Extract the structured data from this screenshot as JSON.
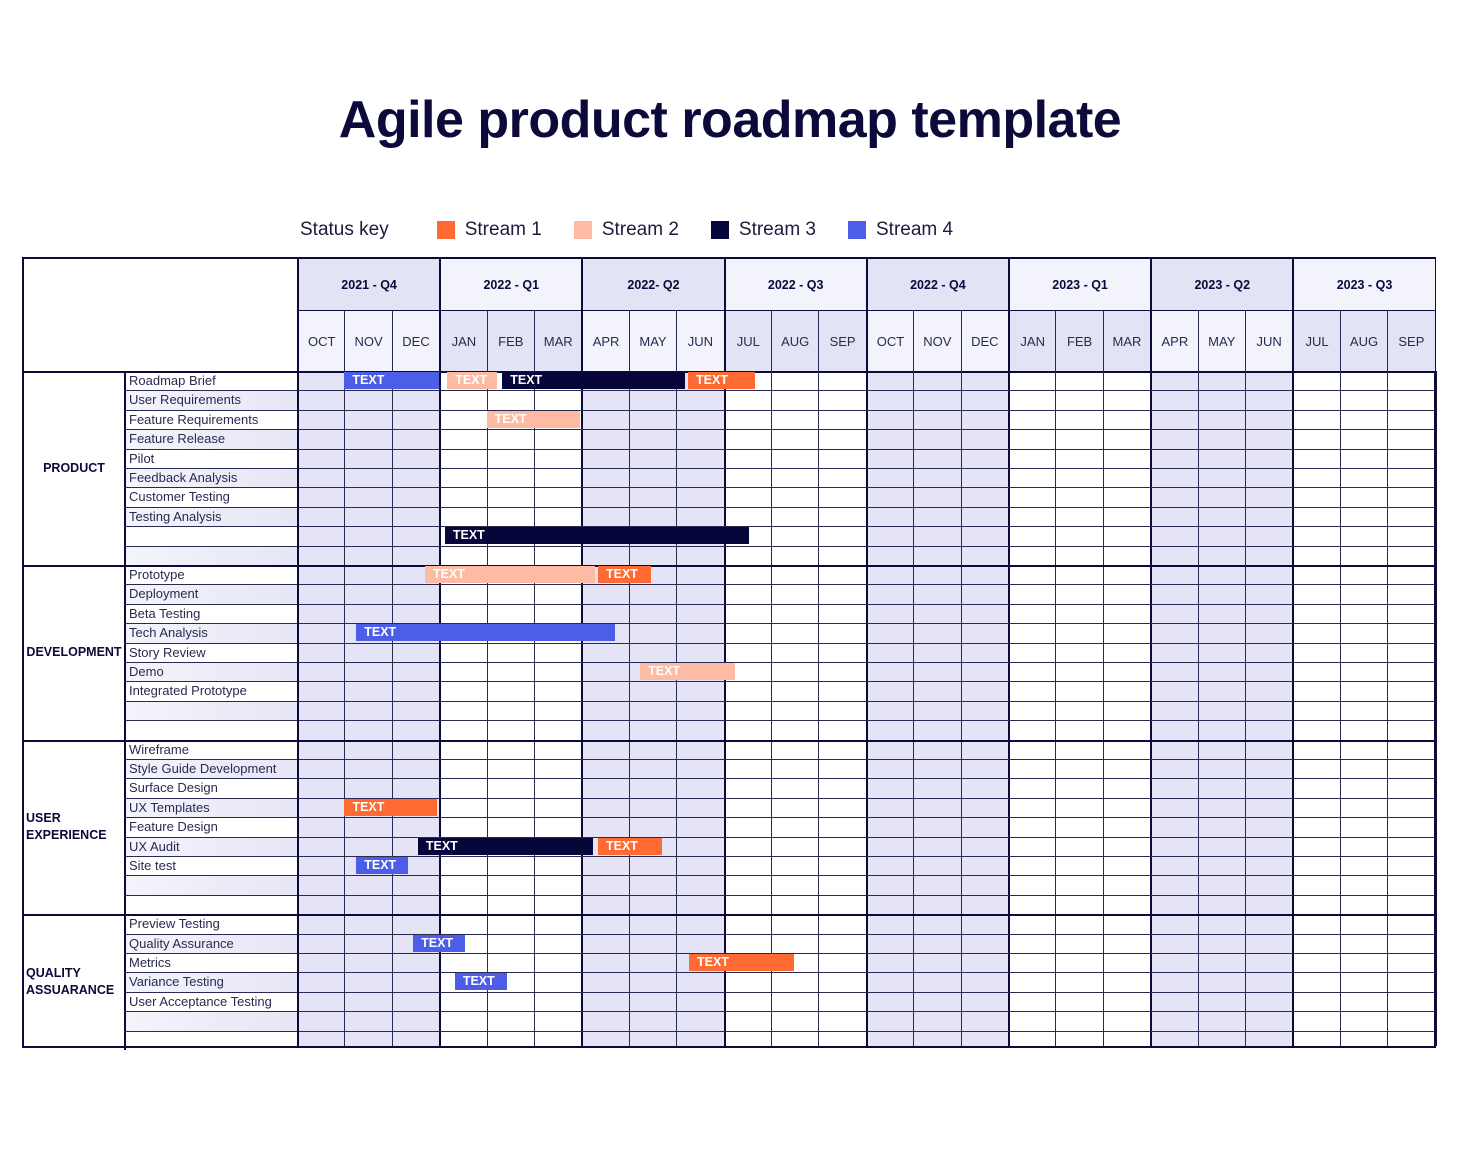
{
  "title": "Agile product roadmap template",
  "legend": {
    "label": "Status key",
    "items": [
      {
        "name": "Stream 1",
        "color": "#ff6a33"
      },
      {
        "name": "Stream 2",
        "color": "#fdbba3"
      },
      {
        "name": "Stream 3",
        "color": "#07063a"
      },
      {
        "name": "Stream 4",
        "color": "#4c5ee8"
      }
    ]
  },
  "colors": {
    "border": "#0b0a3a",
    "quarter_shade_dark": "#e3e3f6",
    "quarter_shade_light": "#f3f3fb",
    "body_shade": "#e4e4f6"
  },
  "quarters": [
    "2021 - Q4",
    "2022 - Q1",
    "2022- Q2",
    "2022 - Q3",
    "2022 - Q4",
    "2023 - Q1",
    "2023 - Q2",
    "2023 - Q3"
  ],
  "months": [
    "OCT",
    "NOV",
    "DEC",
    "JAN",
    "FEB",
    "MAR",
    "APR",
    "MAY",
    "JUN",
    "JUL",
    "AUG",
    "SEP",
    "OCT",
    "NOV",
    "DEC",
    "JAN",
    "FEB",
    "MAR",
    "APR",
    "MAY",
    "JUN",
    "JUL",
    "AUG",
    "SEP"
  ],
  "sections": [
    {
      "name": "PRODUCT",
      "rows": [
        "Roadmap Brief",
        "User Requirements",
        "Feature Requirements",
        "Feature Release",
        "Pilot",
        "Feedback Analysis",
        "Customer Testing",
        "Testing Analysis",
        "",
        ""
      ]
    },
    {
      "name": "DEVELOPMENT",
      "rows": [
        "Prototype",
        "Deployment",
        "Beta Testing",
        "Tech Analysis",
        "Story Review",
        "Demo",
        "Integrated Prototype",
        "",
        ""
      ]
    },
    {
      "name": "USER EXPERIENCE",
      "name_lines": [
        "USER",
        "EXPERIENCE"
      ],
      "rows": [
        "Wireframe",
        "Style Guide Development",
        "Surface Design",
        "UX Templates",
        "Feature Design",
        "UX Audit",
        "Site test",
        "",
        ""
      ]
    },
    {
      "name": "QUALITY ASSUARANCE",
      "name_lines": [
        "QUALITY",
        "ASSUARANCE"
      ],
      "rows": [
        "Preview Testing",
        "Quality Assurance",
        "Metrics",
        "Variance Testing",
        "User Acceptance Testing",
        "",
        ""
      ]
    }
  ],
  "chart_data": {
    "type": "gantt",
    "title": "Agile product roadmap template",
    "legend": [
      "Stream 1",
      "Stream 2",
      "Stream 3",
      "Stream 4"
    ],
    "x_axis": {
      "quarters": [
        "2021 - Q4",
        "2022 - Q1",
        "2022- Q2",
        "2022 - Q3",
        "2022 - Q4",
        "2023 - Q1",
        "2023 - Q2",
        "2023 - Q3"
      ],
      "unit": "month index from OCT 2021 = 0"
    },
    "bars": [
      {
        "section": 0,
        "row": 0,
        "task": "Roadmap Brief",
        "stream": "Stream 4",
        "start": 1.0,
        "end": 3.0,
        "label": "TEXT"
      },
      {
        "section": 0,
        "row": 0,
        "task": "Roadmap Brief",
        "stream": "Stream 2",
        "start": 3.17,
        "end": 4.22,
        "label": "TEXT"
      },
      {
        "section": 0,
        "row": 0,
        "task": "Roadmap Brief",
        "stream": "Stream 3",
        "start": 4.33,
        "end": 8.19,
        "label": "TEXT"
      },
      {
        "section": 0,
        "row": 0,
        "task": "Roadmap Brief",
        "stream": "Stream 1",
        "start": 8.25,
        "end": 9.67,
        "label": "TEXT"
      },
      {
        "section": 0,
        "row": 2,
        "task": "Feature Requirements",
        "stream": "Stream 2",
        "start": 4.0,
        "end": 5.97,
        "label": "TEXT"
      },
      {
        "section": 0,
        "row": 8,
        "task": "",
        "stream": "Stream 3",
        "start": 3.12,
        "end": 9.54,
        "label": "TEXT"
      },
      {
        "section": 1,
        "row": 0,
        "task": "Prototype",
        "stream": "Stream 2",
        "start": 2.7,
        "end": 6.29,
        "label": "TEXT"
      },
      {
        "section": 1,
        "row": 0,
        "task": "Prototype",
        "stream": "Stream 1",
        "start": 6.35,
        "end": 7.47,
        "label": "TEXT"
      },
      {
        "section": 1,
        "row": 3,
        "task": "Tech Analysis",
        "stream": "Stream 4",
        "start": 1.25,
        "end": 6.71,
        "label": "TEXT"
      },
      {
        "section": 1,
        "row": 5,
        "task": "Demo",
        "stream": "Stream 2",
        "start": 7.24,
        "end": 9.24,
        "label": "TEXT"
      },
      {
        "section": 2,
        "row": 3,
        "task": "UX Templates",
        "stream": "Stream 1",
        "start": 1.0,
        "end": 2.95,
        "label": "TEXT"
      },
      {
        "section": 2,
        "row": 5,
        "task": "UX Audit",
        "stream": "Stream 3",
        "start": 2.55,
        "end": 6.25,
        "label": "TEXT"
      },
      {
        "section": 2,
        "row": 5,
        "task": "UX Audit",
        "stream": "Stream 1",
        "start": 6.35,
        "end": 7.7,
        "label": "TEXT"
      },
      {
        "section": 2,
        "row": 6,
        "task": "Site test",
        "stream": "Stream 4",
        "start": 1.25,
        "end": 2.35,
        "label": "TEXT"
      },
      {
        "section": 3,
        "row": 1,
        "task": "Quality Assurance",
        "stream": "Stream 4",
        "start": 2.45,
        "end": 3.55,
        "label": "TEXT"
      },
      {
        "section": 3,
        "row": 2,
        "task": "Metrics",
        "stream": "Stream 1",
        "start": 8.27,
        "end": 10.49,
        "label": "TEXT"
      },
      {
        "section": 3,
        "row": 3,
        "task": "Variance Testing",
        "stream": "Stream 4",
        "start": 3.33,
        "end": 4.43,
        "label": "TEXT"
      }
    ]
  }
}
